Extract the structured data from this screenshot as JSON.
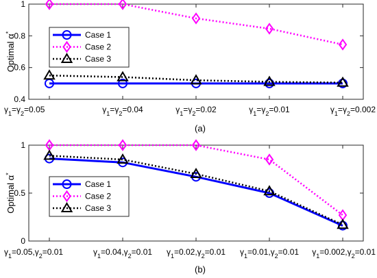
{
  "chart_data": [
    {
      "type": "line",
      "caption": "(a)",
      "ylabel": "Optimal α*",
      "ylim": [
        0.4,
        1.0
      ],
      "yticks": [
        "0.4",
        "0.6",
        "0.8",
        "1"
      ],
      "categories": [
        "γ1=γ2=0.05",
        "γ1=γ2=0.04",
        "γ1=γ2=0.02",
        "γ1=γ2=0.01",
        "γ1=γ2=0.002"
      ],
      "legend_position": "upper-left",
      "grid": false,
      "series": [
        {
          "name": "Case 1",
          "color": "#0000ff",
          "dash": "solid",
          "marker": "circle",
          "values": [
            0.5,
            0.5,
            0.5,
            0.5,
            0.5
          ]
        },
        {
          "name": "Case 2",
          "color": "#ff00ff",
          "dash": "dotted",
          "marker": "diamond",
          "values": [
            1.0,
            1.0,
            0.91,
            0.845,
            0.745
          ]
        },
        {
          "name": "Case 3",
          "color": "#000000",
          "dash": "dotted",
          "marker": "triangle",
          "values": [
            0.55,
            0.54,
            0.52,
            0.51,
            0.505
          ]
        }
      ]
    },
    {
      "type": "line",
      "caption": "(b)",
      "ylabel": "Optimal α*",
      "ylim": [
        0,
        1.0
      ],
      "yticks": [
        "0",
        "0.5",
        "1"
      ],
      "categories": [
        "γ1=0.05,γ2=0.01",
        "γ1=0.04,γ2=0.01",
        "γ1=0.02,γ2=0.01",
        "γ1=0.01,γ2=0.01",
        "γ1=0.002,γ2=0.01"
      ],
      "legend_position": "middle-left",
      "grid": false,
      "series": [
        {
          "name": "Case 1",
          "color": "#0000ff",
          "dash": "solid",
          "marker": "circle",
          "values": [
            0.86,
            0.82,
            0.67,
            0.5,
            0.16
          ]
        },
        {
          "name": "Case 2",
          "color": "#ff00ff",
          "dash": "dotted",
          "marker": "diamond",
          "values": [
            1.0,
            1.0,
            1.0,
            0.85,
            0.27
          ]
        },
        {
          "name": "Case 3",
          "color": "#000000",
          "dash": "dotted",
          "marker": "triangle",
          "values": [
            0.89,
            0.85,
            0.7,
            0.52,
            0.17
          ]
        }
      ]
    }
  ]
}
